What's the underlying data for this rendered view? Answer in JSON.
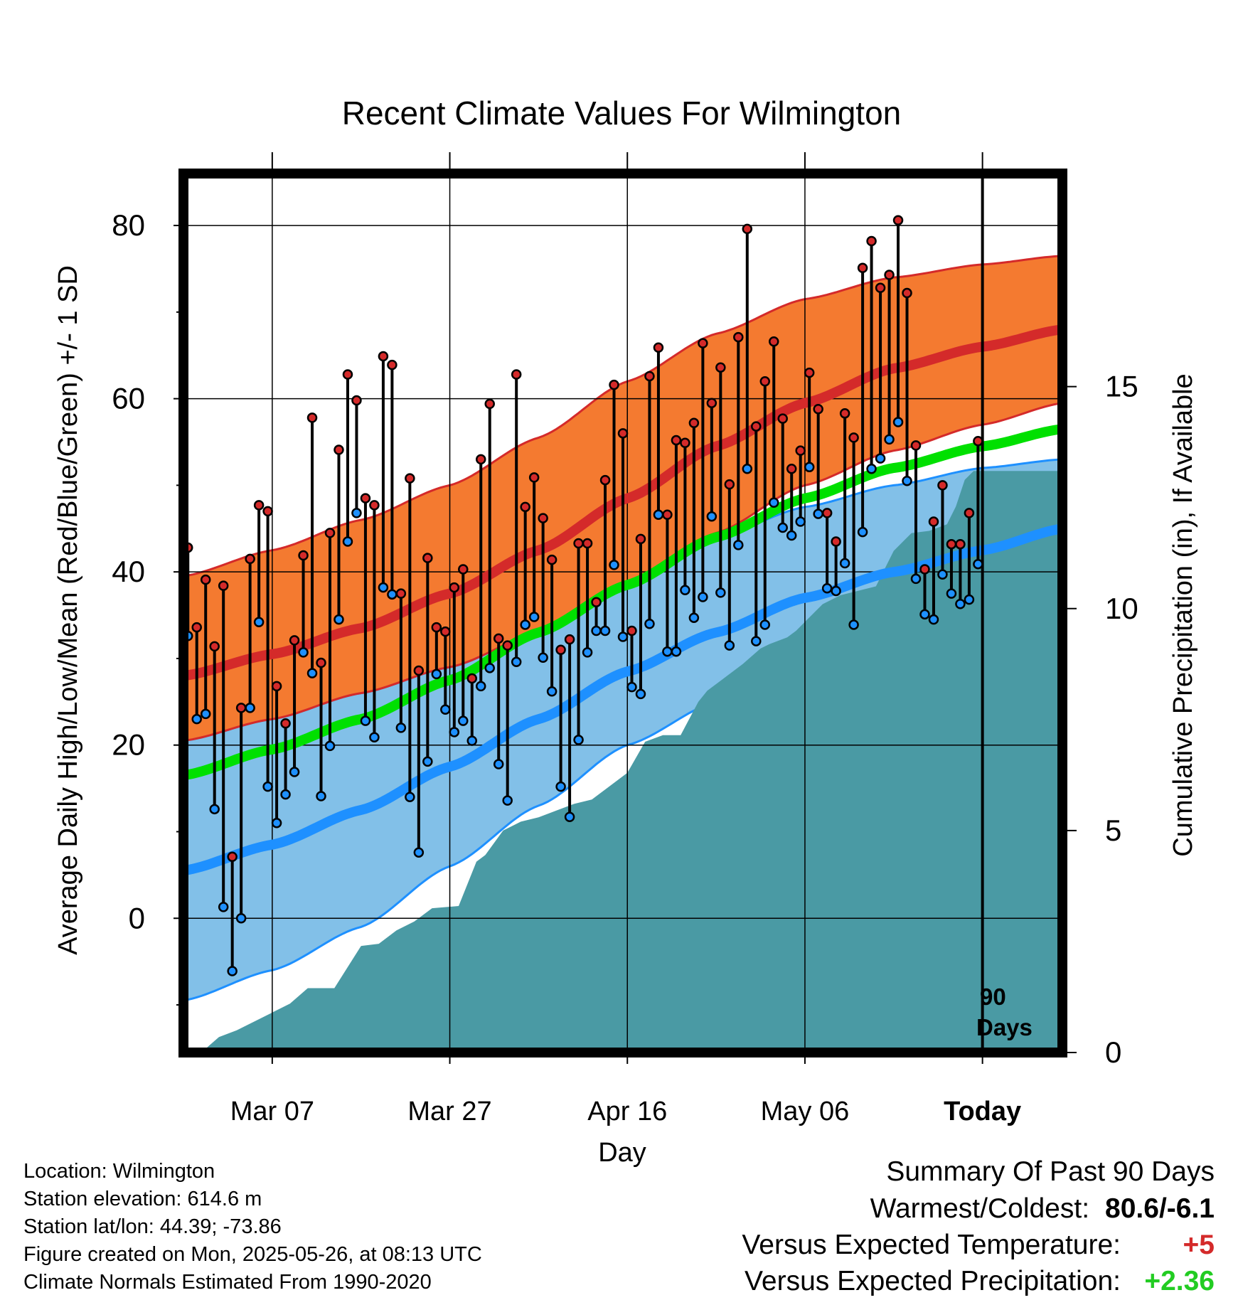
{
  "title": "Recent Climate Values For Wilmington",
  "ylabel_left": "Average Daily High/Low/Mean (Red/Blue/Green) +/- 1 SD",
  "ylabel_right": "Cumulative Precipitation (in), If Available",
  "xlabel": "Day",
  "x_ticks": [
    "Mar 07",
    "Mar 27",
    "Apr 16",
    "May 06",
    "Today"
  ],
  "today_label_line1": "90",
  "today_label_line2": "Days",
  "footer": {
    "location": "Location: Wilmington",
    "elevation": "Station elevation: 614.6 m",
    "latlon": "Station lat/lon: 44.39; -73.86",
    "created": "Figure created on Mon, 2025-05-26, at 08:13 UTC",
    "normals": "Climate Normals Estimated From 1990-2020"
  },
  "summary": {
    "heading": "Summary Of Past 90 Days",
    "warmest_label": "Warmest/Coldest:",
    "warmest_value": "80.6/-6.1",
    "temp_label": "Versus Expected Temperature:",
    "temp_value": "+5",
    "precip_label": "Versus Expected Precipitation:",
    "precip_value": "+2.36"
  },
  "colors": {
    "high_band": "#f47a30",
    "high_mean": "#d42a2a",
    "low_band": "#82c0e8",
    "low_mean": "#1e90ff",
    "avg_mean": "#00e000",
    "precip": "#4a9aa4",
    "temp_positive": "#d42a2a",
    "precip_positive": "#22cc22"
  },
  "chart_data": {
    "type": "line",
    "x": "days before today",
    "xlim": [
      -90,
      9
    ],
    "ylim_left": [
      -15.5,
      86
    ],
    "ylim_right": [
      0,
      19.8
    ],
    "yticks_left": [
      0,
      20,
      40,
      60,
      80
    ],
    "yticks_right": [
      0,
      5,
      10,
      15
    ],
    "x_tick_positions": [
      -80,
      -60,
      -40,
      -20,
      0
    ],
    "normals": {
      "x": [
        -90,
        -80,
        -70,
        -60,
        -50,
        -40,
        -30,
        -20,
        -10,
        0,
        9
      ],
      "high_mean": [
        28.0,
        30.5,
        33.5,
        37.5,
        42.5,
        48.5,
        54.5,
        59.5,
        63.5,
        66.0,
        68.0
      ],
      "high_upper": [
        39.5,
        42.5,
        46.0,
        50.0,
        55.5,
        62.0,
        67.5,
        71.5,
        74.0,
        75.5,
        76.5
      ],
      "high_lower": [
        20.5,
        23.0,
        26.0,
        29.0,
        33.0,
        38.5,
        44.5,
        50.0,
        54.0,
        57.0,
        59.5
      ],
      "low_mean": [
        5.5,
        8.5,
        12.5,
        17.5,
        23.0,
        28.5,
        33.0,
        37.0,
        40.0,
        42.5,
        45.0
      ],
      "low_upper": [
        20.5,
        23.0,
        26.0,
        29.0,
        33.0,
        38.5,
        44.0,
        47.5,
        50.0,
        52.0,
        53.0
      ],
      "low_lower": [
        -9.5,
        -6.0,
        -1.0,
        6.0,
        13.0,
        20.0,
        25.0,
        29.0,
        32.0,
        35.0,
        38.0
      ],
      "avg_mean": [
        16.5,
        19.5,
        23.0,
        27.5,
        33.0,
        38.5,
        44.0,
        48.5,
        52.0,
        54.5,
        56.5
      ]
    },
    "daily_high": [
      42.8,
      33.6,
      39.1,
      31.4,
      38.4,
      7.1,
      24.3,
      41.5,
      47.7,
      47.0,
      26.8,
      22.5,
      32.1,
      41.9,
      57.8,
      29.5,
      44.5,
      54.1,
      62.8,
      59.8,
      48.5,
      47.7,
      64.9,
      63.9,
      37.5,
      50.8,
      28.6,
      41.6,
      33.6,
      33.1,
      38.2,
      40.3,
      27.7,
      53.0,
      59.4,
      32.3,
      31.5,
      62.8,
      47.5,
      50.9,
      46.2,
      41.4,
      31.0,
      32.2,
      43.3,
      43.3,
      36.5,
      50.6,
      61.6,
      56.0,
      33.2,
      43.8,
      62.6,
      65.9,
      46.6,
      55.2,
      54.9,
      57.2,
      66.4,
      59.5,
      63.6,
      50.1,
      67.1,
      79.6,
      56.8,
      62.0,
      66.6,
      57.7,
      51.9,
      54.0,
      63.0,
      58.8,
      46.8,
      43.5,
      58.3,
      55.5,
      75.1,
      78.2,
      72.8,
      74.3,
      80.6,
      72.2,
      54.6,
      40.3,
      45.8,
      50.0,
      43.2,
      43.2,
      46.8,
      55.1
    ],
    "daily_low": [
      32.6,
      23.0,
      23.6,
      12.6,
      1.3,
      -6.1,
      0.0,
      24.3,
      34.2,
      15.2,
      11.0,
      14.3,
      16.9,
      30.7,
      28.3,
      14.1,
      19.9,
      34.5,
      43.5,
      46.8,
      22.8,
      20.9,
      38.2,
      37.4,
      22.0,
      14.0,
      7.6,
      18.1,
      28.2,
      24.1,
      21.5,
      22.8,
      20.5,
      26.8,
      28.9,
      17.8,
      13.6,
      29.6,
      33.9,
      34.8,
      30.1,
      26.2,
      15.2,
      11.7,
      20.6,
      30.7,
      33.2,
      33.2,
      40.8,
      32.5,
      26.7,
      25.9,
      34.0,
      46.6,
      30.8,
      30.8,
      37.9,
      34.7,
      37.1,
      46.4,
      37.6,
      31.5,
      43.1,
      51.9,
      32.0,
      33.9,
      48.0,
      45.1,
      44.2,
      45.8,
      52.1,
      46.7,
      38.1,
      37.8,
      41.0,
      33.9,
      44.6,
      51.9,
      53.1,
      55.3,
      57.3,
      50.5,
      39.2,
      35.1,
      34.5,
      39.7,
      37.5,
      36.3,
      36.8,
      40.9
    ],
    "cumulative_precip": {
      "x": [
        -90,
        -88,
        -86,
        -84,
        -80,
        -78,
        -76,
        -73,
        -70,
        -68,
        -66,
        -64,
        -62,
        -59,
        -57,
        -56,
        -54,
        -52,
        -50,
        -48,
        -46,
        -44,
        -42,
        -40,
        -38,
        -36,
        -34,
        -32,
        -31,
        -29,
        -27,
        -25,
        -24,
        -22,
        -21,
        -20,
        -18,
        -16,
        -14,
        -12,
        -10,
        -8,
        -6,
        -4,
        -3,
        -2,
        -1,
        0,
        9
      ],
      "y": [
        0.0,
        0.0,
        0.35,
        0.5,
        0.9,
        1.1,
        1.45,
        1.45,
        2.4,
        2.45,
        2.75,
        2.95,
        3.25,
        3.3,
        4.3,
        4.45,
        5.0,
        5.2,
        5.3,
        5.45,
        5.6,
        5.7,
        6.0,
        6.3,
        7.0,
        7.15,
        7.15,
        7.9,
        8.15,
        8.45,
        8.75,
        9.1,
        9.2,
        9.35,
        9.5,
        9.7,
        10.1,
        10.3,
        10.4,
        10.5,
        11.3,
        11.7,
        11.75,
        11.9,
        12.3,
        12.9,
        13.1,
        13.1,
        13.1
      ]
    }
  }
}
